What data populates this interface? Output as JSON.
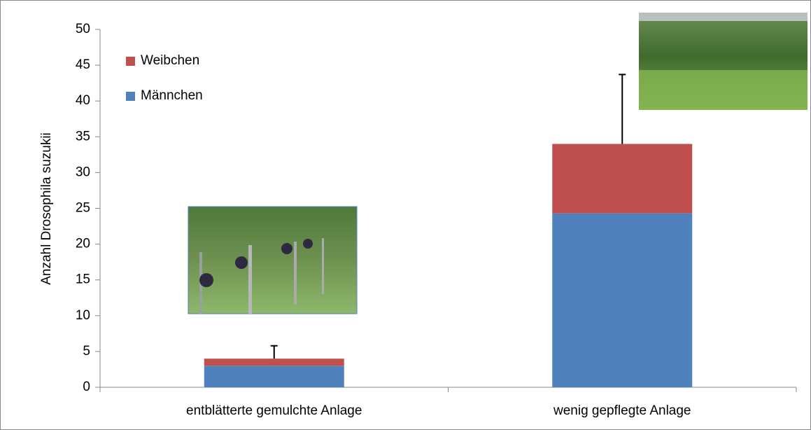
{
  "chart_data": {
    "type": "stacked_bar",
    "y_label": "Anzahl Drosophila suzukii",
    "categories": [
      "entblätterte gemulchte Anlage",
      "wenig gepflegte Anlage"
    ],
    "series": [
      {
        "name": "Männchen",
        "color": "#4f81bd",
        "values": [
          3,
          24.3
        ]
      },
      {
        "name": "Weibchen",
        "color": "#c0504d",
        "values": [
          1,
          9.7
        ],
        "errors": [
          1.8,
          9.7
        ]
      }
    ],
    "ylim": [
      0,
      50
    ],
    "yticks": [
      0,
      5,
      10,
      15,
      20,
      25,
      30,
      35,
      40,
      45,
      50
    ],
    "grid": false,
    "legend": "upper left"
  }
}
